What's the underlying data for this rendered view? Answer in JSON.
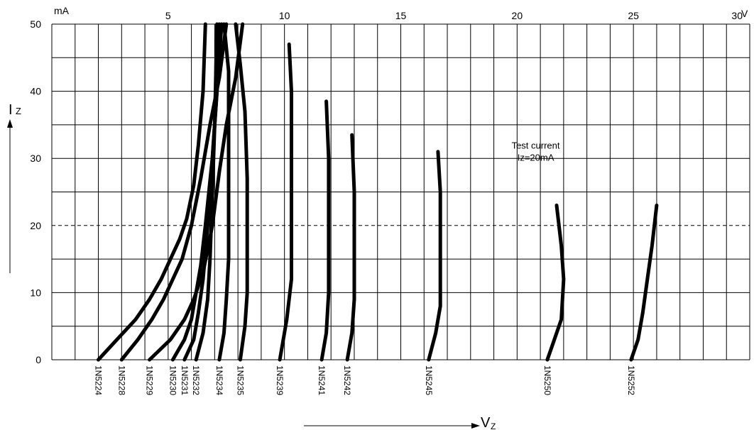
{
  "chart_data": {
    "type": "line",
    "title": "",
    "x_unit": "V",
    "y_unit": "mA",
    "xlabel_main": "V",
    "xlabel_sub": "Z",
    "ylabel_main": "I",
    "ylabel_sub": "Z",
    "xlim": [
      0,
      30
    ],
    "ylim": [
      0,
      50
    ],
    "x_ticks": [
      5,
      10,
      15,
      20,
      25,
      30
    ],
    "y_ticks": [
      0,
      10,
      20,
      30,
      40,
      50
    ],
    "grid": true,
    "reference_line": {
      "y": 20,
      "style": "dashed"
    },
    "annotation": {
      "lines": [
        "Test current",
        "Iz=20mA"
      ],
      "x": 20.8,
      "y": 30.5
    },
    "series": [
      {
        "name": "1N5224",
        "points": [
          [
            2.0,
            0
          ],
          [
            2.8,
            3
          ],
          [
            3.6,
            6
          ],
          [
            4.2,
            9
          ],
          [
            4.7,
            12
          ],
          [
            5.1,
            15
          ],
          [
            5.5,
            18
          ],
          [
            5.8,
            21
          ],
          [
            6.1,
            26
          ],
          [
            6.3,
            32
          ],
          [
            6.5,
            40
          ],
          [
            6.6,
            50
          ]
        ]
      },
      {
        "name": "1N5228",
        "points": [
          [
            3.0,
            0
          ],
          [
            3.7,
            3
          ],
          [
            4.3,
            6
          ],
          [
            4.8,
            9
          ],
          [
            5.2,
            12
          ],
          [
            5.6,
            15
          ],
          [
            6.0,
            20
          ],
          [
            6.4,
            27
          ],
          [
            6.8,
            35
          ],
          [
            7.2,
            42
          ],
          [
            7.5,
            50
          ]
        ]
      },
      {
        "name": "1N5229",
        "points": [
          [
            4.2,
            0
          ],
          [
            5.1,
            3
          ],
          [
            5.7,
            6
          ],
          [
            6.1,
            9
          ],
          [
            6.5,
            13
          ],
          [
            6.9,
            20
          ],
          [
            7.2,
            28
          ],
          [
            7.5,
            35
          ],
          [
            7.9,
            42
          ],
          [
            8.2,
            50
          ]
        ]
      },
      {
        "name": "1N5230",
        "points": [
          [
            5.2,
            0
          ],
          [
            5.7,
            3
          ],
          [
            6.0,
            6
          ],
          [
            6.2,
            10
          ],
          [
            6.4,
            14
          ],
          [
            6.6,
            20
          ],
          [
            6.9,
            30
          ],
          [
            7.1,
            40
          ],
          [
            7.3,
            50
          ]
        ]
      },
      {
        "name": "1N5231",
        "points": [
          [
            5.7,
            0
          ],
          [
            6.1,
            3
          ],
          [
            6.3,
            7
          ],
          [
            6.5,
            12
          ],
          [
            6.7,
            20
          ],
          [
            6.9,
            30
          ],
          [
            7.1,
            40
          ],
          [
            7.2,
            50
          ]
        ]
      },
      {
        "name": "1N5232",
        "points": [
          [
            6.2,
            0
          ],
          [
            6.5,
            4
          ],
          [
            6.7,
            9
          ],
          [
            6.8,
            15
          ],
          [
            6.9,
            25
          ],
          [
            7.0,
            35
          ],
          [
            7.1,
            50
          ]
        ]
      },
      {
        "name": "1N5234",
        "points": [
          [
            7.2,
            0
          ],
          [
            7.4,
            4
          ],
          [
            7.5,
            9
          ],
          [
            7.6,
            15
          ],
          [
            7.6,
            25
          ],
          [
            7.6,
            35
          ],
          [
            7.6,
            43
          ],
          [
            7.4,
            50
          ]
        ]
      },
      {
        "name": "1N5235",
        "points": [
          [
            8.1,
            0
          ],
          [
            8.3,
            5
          ],
          [
            8.4,
            10
          ],
          [
            8.4,
            18
          ],
          [
            8.4,
            27
          ],
          [
            8.3,
            37
          ],
          [
            8.1,
            44
          ],
          [
            7.9,
            50
          ]
        ]
      },
      {
        "name": "1N5239",
        "points": [
          [
            9.8,
            0
          ],
          [
            10.1,
            6
          ],
          [
            10.3,
            12
          ],
          [
            10.3,
            20
          ],
          [
            10.3,
            30
          ],
          [
            10.3,
            40
          ],
          [
            10.2,
            47
          ]
        ]
      },
      {
        "name": "1N5241",
        "points": [
          [
            11.6,
            0
          ],
          [
            11.8,
            4
          ],
          [
            11.9,
            10
          ],
          [
            11.9,
            20
          ],
          [
            11.9,
            30
          ],
          [
            11.8,
            38.5
          ]
        ]
      },
      {
        "name": "1N5242",
        "points": [
          [
            12.7,
            0
          ],
          [
            12.9,
            4
          ],
          [
            13.0,
            9
          ],
          [
            13.0,
            15
          ],
          [
            13.0,
            25
          ],
          [
            12.9,
            33.5
          ]
        ]
      },
      {
        "name": "1N5245",
        "points": [
          [
            16.2,
            0
          ],
          [
            16.5,
            4
          ],
          [
            16.7,
            8
          ],
          [
            16.7,
            15
          ],
          [
            16.7,
            25
          ],
          [
            16.6,
            31
          ]
        ]
      },
      {
        "name": "1N5250",
        "points": [
          [
            21.3,
            0
          ],
          [
            21.6,
            3
          ],
          [
            21.9,
            6
          ],
          [
            22.0,
            12
          ],
          [
            21.9,
            17
          ],
          [
            21.7,
            23
          ]
        ]
      },
      {
        "name": "1N5252",
        "points": [
          [
            24.9,
            0
          ],
          [
            25.2,
            3
          ],
          [
            25.4,
            7
          ],
          [
            25.6,
            12
          ],
          [
            25.8,
            17
          ],
          [
            26.0,
            23
          ]
        ]
      }
    ]
  }
}
